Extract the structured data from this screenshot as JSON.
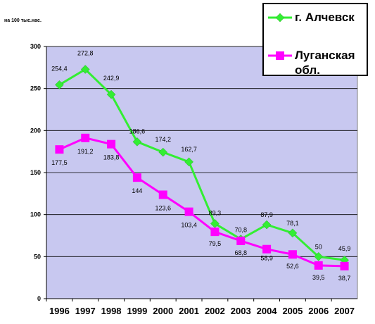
{
  "chart_data": {
    "type": "line",
    "title": "",
    "ylabel": "на 100 тыс.нас.",
    "xlabel": "",
    "categories": [
      "1996",
      "1997",
      "1998",
      "1999",
      "2000",
      "2001",
      "2002",
      "2003",
      "2004",
      "2005",
      "2006",
      "2007"
    ],
    "ylim": [
      0,
      300
    ],
    "yticks": [
      0,
      50,
      100,
      150,
      200,
      250,
      300
    ],
    "grid": true,
    "legend_position": "top-right",
    "plot_background": "#c8c8f0",
    "series": [
      {
        "name": "г. Алчевск",
        "color": "#33ee33",
        "marker": "diamond",
        "values": [
          254.4,
          272.8,
          242.9,
          186.6,
          174.2,
          162.7,
          89.3,
          70.8,
          87.9,
          78.1,
          50,
          45.9
        ],
        "labels": [
          "254,4",
          "272,8",
          "242,9",
          "186,6",
          "174,2",
          "162,7",
          "89,3",
          "70,8",
          "87,9",
          "78,1",
          "50",
          "45,9"
        ]
      },
      {
        "name": "Луганская обл.",
        "color": "#ff00ff",
        "marker": "square",
        "values": [
          177.5,
          191.2,
          183.8,
          144,
          123.6,
          103.4,
          79.5,
          68.8,
          58.9,
          52.6,
          39.5,
          38.7
        ],
        "labels": [
          "177,5",
          "191,2",
          "183,8",
          "144",
          "123,6",
          "103,4",
          "79,5",
          "68,8",
          "58,9",
          "52,6",
          "39,5",
          "38,7"
        ]
      }
    ]
  },
  "legend": {
    "item1": "г. Алчевск",
    "item2": "Луганская обл."
  }
}
